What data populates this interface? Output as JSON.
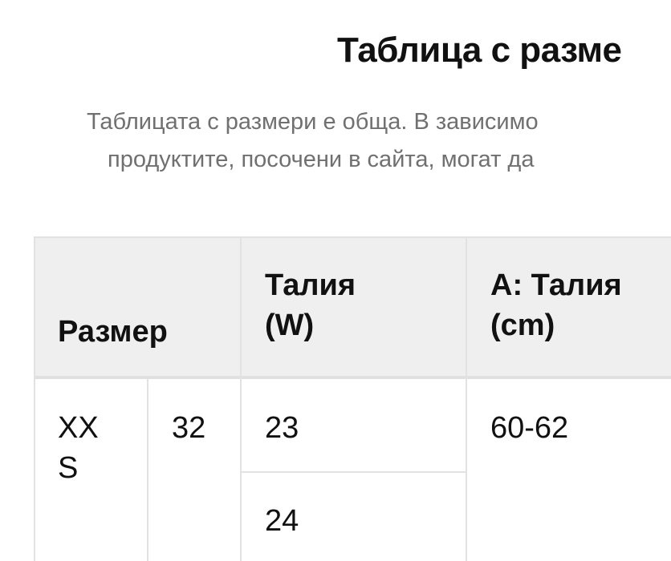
{
  "title": "Таблица с разме",
  "subtitle_lines": [
    "Таблицата с размери е обща. В зависимо",
    "продуктите, посочени в сайта, могат да"
  ],
  "table": {
    "headers": [
      "Размер",
      "Талия (W)",
      "A: Талия (cm)"
    ],
    "header_lines": {
      "waist_w": [
        "Талия",
        "(W)"
      ],
      "waist_cm": [
        "A: Талия",
        "(cm)"
      ]
    },
    "rows": [
      {
        "size": "XXS",
        "size_lines": [
          "XX",
          "S"
        ],
        "eu": "32",
        "waist_w": [
          "23",
          "24"
        ],
        "waist_cm": "60-62"
      }
    ]
  },
  "colors": {
    "header_bg": "#efefef",
    "border": "#e2e2e2",
    "subtitle": "#707070"
  }
}
